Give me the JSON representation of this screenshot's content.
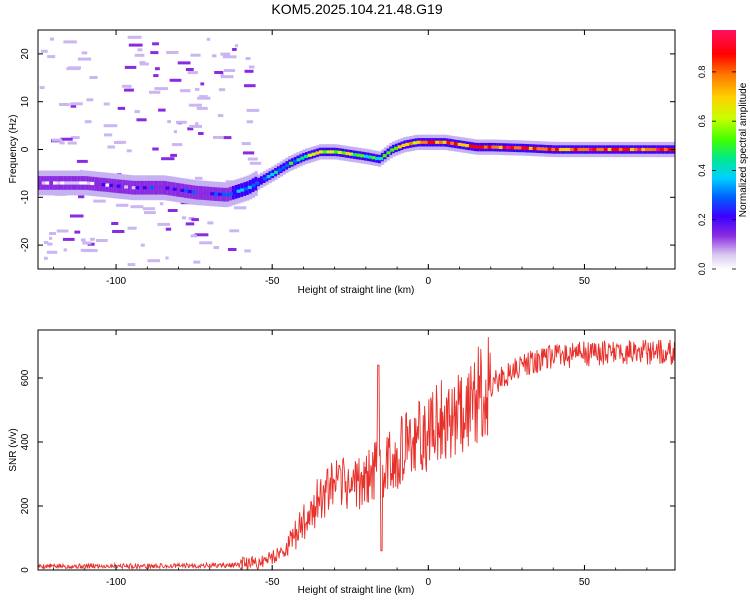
{
  "title": "KOM5.2025.104.21.48.G19",
  "colors": {
    "snr_line": "#e8302a",
    "colormap": [
      "#d8c8f0",
      "#8a2be2",
      "#4b00ff",
      "#0050ff",
      "#00c8ff",
      "#00e890",
      "#40ff00",
      "#c8ff00",
      "#ffd000",
      "#ff7a00",
      "#ff0000",
      "#ff1060"
    ]
  },
  "chart_data": [
    {
      "type": "heatmap",
      "title": "KOM5.2025.104.21.48.G19",
      "xlabel": "Height of straight line (km)",
      "ylabel": "Frequency (Hz)",
      "xlim": [
        -125,
        79
      ],
      "ylim": [
        -25,
        25
      ],
      "xticks": [
        -100,
        -50,
        0,
        50
      ],
      "yticks": [
        -20,
        -10,
        0,
        10,
        20
      ],
      "grid": false,
      "colorbar": {
        "label": "Normalized spectral amplitude",
        "range": [
          0,
          0.97
        ],
        "ticks": [
          0.0,
          0.2,
          0.4,
          0.6,
          0.8
        ]
      },
      "ridge": {
        "x": [
          -125,
          -110,
          -95,
          -85,
          -75,
          -65,
          -58,
          -50,
          -45,
          -40,
          -35,
          -30,
          -25,
          -20,
          -16,
          -12,
          -8,
          -4,
          0,
          5,
          10,
          15,
          20,
          30,
          40,
          50,
          60,
          70,
          79
        ],
        "freq": [
          -7,
          -7,
          -8,
          -8,
          -9,
          -9.5,
          -8,
          -5,
          -3,
          -1.5,
          -0.5,
          -0.5,
          -1,
          -1.5,
          -2,
          0,
          1,
          1.5,
          1.5,
          1.5,
          1,
          0.5,
          0.5,
          0.3,
          0,
          0,
          0,
          0,
          0
        ],
        "amplitude": [
          0.1,
          0.12,
          0.2,
          0.22,
          0.25,
          0.28,
          0.35,
          0.4,
          0.45,
          0.55,
          0.75,
          0.7,
          0.6,
          0.5,
          0.45,
          0.6,
          0.75,
          0.85,
          0.9,
          0.85,
          0.8,
          0.85,
          0.9,
          0.9,
          0.88,
          0.9,
          0.9,
          0.9,
          0.9
        ]
      }
    },
    {
      "type": "line",
      "xlabel": "Height of straight line (km)",
      "ylabel": "SNR (v/v)",
      "xlim": [
        -125,
        79
      ],
      "ylim": [
        0,
        750
      ],
      "xticks": [
        -100,
        -50,
        0,
        50
      ],
      "yticks": [
        0,
        200,
        400,
        600
      ],
      "grid": false,
      "series": [
        {
          "x": [
            -125,
            -110,
            -100,
            -90,
            -80,
            -70,
            -60,
            -55,
            -50,
            -45,
            -40,
            -35,
            -30,
            -25,
            -20,
            -18,
            -16,
            -14,
            -10,
            -5,
            0,
            5,
            10,
            15,
            20,
            25,
            30,
            35,
            40,
            50,
            60,
            70,
            79
          ],
          "values": [
            12,
            12,
            13,
            12,
            13,
            14,
            15,
            20,
            40,
            70,
            150,
            220,
            260,
            270,
            280,
            300,
            320,
            330,
            360,
            395,
            430,
            470,
            505,
            540,
            575,
            610,
            640,
            655,
            665,
            675,
            680,
            680,
            680
          ]
        }
      ],
      "annotations": {
        "spike": {
          "x": -16,
          "y": 640
        },
        "dip": {
          "x": -15,
          "y": 60
        }
      }
    }
  ]
}
